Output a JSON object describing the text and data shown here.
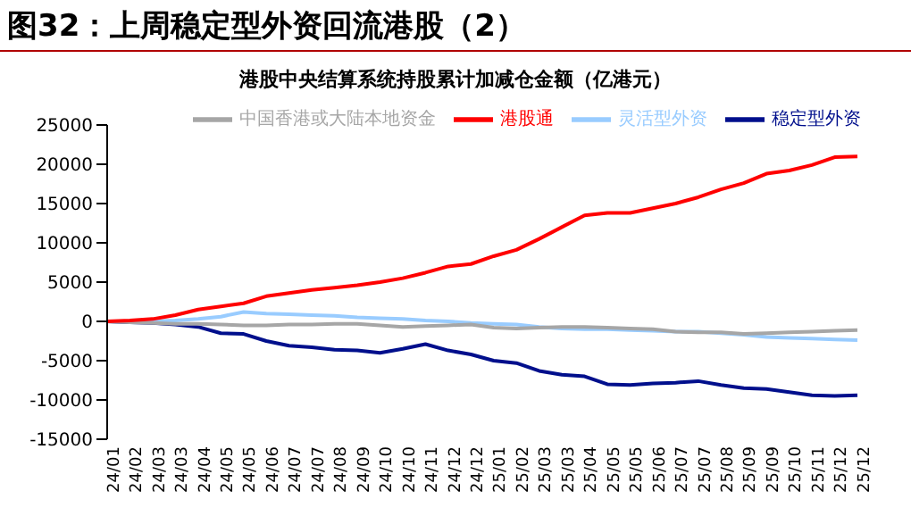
{
  "chart_data": {
    "type": "line",
    "title": "图32：上周稳定型外资回流港股（2）",
    "subtitle": "港股中央结算系统持股累计加减仓金额（亿港元）",
    "categories": [
      "24/01",
      "24/02",
      "24/03",
      "24/03",
      "24/04",
      "24/05",
      "24/05",
      "24/06",
      "24/07",
      "24/07",
      "24/08",
      "24/09",
      "24/10",
      "24/10",
      "24/11",
      "24/12",
      "24/12",
      "25/01",
      "25/02",
      "25/03",
      "25/03",
      "25/04",
      "25/05",
      "25/05",
      "25/06",
      "25/07",
      "25/07",
      "25/08",
      "25/09",
      "25/09",
      "25/10",
      "25/11",
      "25/12",
      "25/12"
    ],
    "series": [
      {
        "name": "稳定型外资",
        "color": "#000f8c",
        "values": [
          0,
          -100,
          -200,
          -400,
          -700,
          -1500,
          -1600,
          -2500,
          -3100,
          -3300,
          -3600,
          -3700,
          -4000,
          -3500,
          -2900,
          -3700,
          -4200,
          -5000,
          -5300,
          -6300,
          -6800,
          -7000,
          -8000,
          -8100,
          -7900,
          -7800,
          -7600,
          -8100,
          -8500,
          -8600,
          -9000,
          -9400,
          -9500,
          -9400
        ]
      },
      {
        "name": "灵活型外资",
        "color": "#99ccff",
        "values": [
          0,
          0,
          0,
          100,
          300,
          600,
          1200,
          1000,
          900,
          800,
          700,
          500,
          400,
          300,
          100,
          0,
          -200,
          -300,
          -400,
          -700,
          -900,
          -1000,
          -1000,
          -1100,
          -1200,
          -1300,
          -1300,
          -1500,
          -1700,
          -2000,
          -2100,
          -2200,
          -2300,
          -2400
        ]
      },
      {
        "name": "中国香港或大陆本地资金",
        "color": "#a6a6a6",
        "values": [
          0,
          -100,
          -200,
          -300,
          -300,
          -400,
          -500,
          -500,
          -400,
          -400,
          -300,
          -300,
          -500,
          -700,
          -600,
          -500,
          -400,
          -800,
          -900,
          -800,
          -700,
          -700,
          -800,
          -900,
          -1000,
          -1300,
          -1400,
          -1400,
          -1600,
          -1500,
          -1400,
          -1300,
          -1200,
          -1100
        ]
      },
      {
        "name": "港股通",
        "color": "#ff0000",
        "values": [
          0,
          100,
          300,
          800,
          1500,
          1900,
          2300,
          3200,
          3600,
          4000,
          4300,
          4600,
          5000,
          5500,
          6200,
          7000,
          7300,
          8300,
          9100,
          10500,
          12000,
          13500,
          13800,
          13800,
          14400,
          15000,
          15800,
          16800,
          17600,
          18800,
          19200,
          19900,
          20900,
          21000
        ]
      }
    ],
    "ylim": [
      -15000,
      25000
    ],
    "yticks": [
      -15000,
      -10000,
      -5000,
      0,
      5000,
      10000,
      15000,
      20000,
      25000
    ],
    "grid": false,
    "legend": "top",
    "marker": "none",
    "line_style": "solid"
  }
}
